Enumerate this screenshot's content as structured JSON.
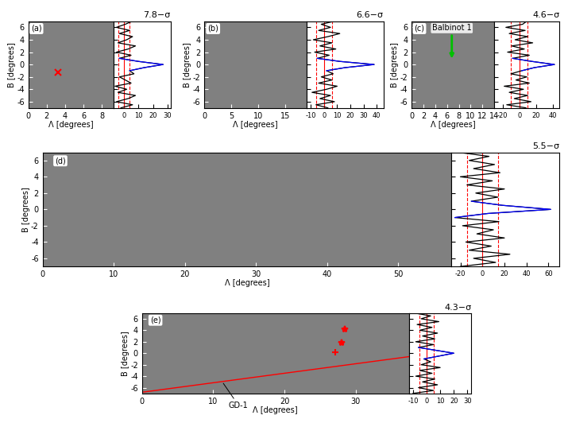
{
  "chart_data": [
    {
      "type": "map",
      "panel": "(a)",
      "color": "#808080",
      "xlabel": "Λ [degrees]",
      "ylabel": "B [degrees]",
      "xlim": [
        0,
        9.3
      ],
      "ylim": [
        -7,
        7
      ],
      "xticks": [
        0,
        2,
        4,
        6,
        8
      ],
      "yticks": [
        -6,
        -4,
        -2,
        0,
        2,
        4,
        6
      ],
      "markers": [
        {
          "x": 3.2,
          "y": -1.3,
          "marker": "x",
          "color": "red"
        }
      ],
      "profile": {
        "type": "line",
        "significance": "7.8−σ",
        "xlim": [
          -7,
          32
        ],
        "xticks": [
          0,
          10,
          20,
          30
        ],
        "tick_labels": "x",
        "y": [
          -7,
          -6.5,
          -6,
          -5.5,
          -5,
          -4.5,
          -4,
          -3.5,
          -3,
          -2.5,
          -2,
          -1.5,
          -1,
          -0.5,
          0,
          0.5,
          1,
          1.5,
          2,
          2.5,
          3,
          3.5,
          4,
          4.5,
          5,
          5.5,
          6,
          6.5,
          7
        ],
        "series": [
          {
            "color": "black",
            "values": [
              -2,
              6,
              -5,
              3,
              8,
              -4,
              2,
              -6,
              5,
              1,
              -3,
              7,
              4,
              14,
              27,
              10,
              -3,
              5,
              -5,
              3,
              8,
              -4,
              2,
              6,
              -3,
              4,
              -5,
              1,
              6
            ]
          },
          {
            "color": "blue",
            "y": [
              -1,
              -0.5,
              0,
              0.5,
              1
            ],
            "values": [
              4,
              14,
              27,
              10,
              -3
            ]
          }
        ],
        "reference_lines": {
          "solid": 0,
          "dashed": [
            -4,
            4
          ],
          "color": "red"
        }
      }
    },
    {
      "type": "map",
      "panel": "(b)",
      "color": "#808080",
      "xlabel": "Λ [degrees]",
      "ylabel": "B [degrees]",
      "xlim": [
        0,
        19
      ],
      "ylim": [
        -7,
        7
      ],
      "xticks": [
        0,
        5,
        10,
        15
      ],
      "yticks": [
        -6,
        -4,
        -2,
        0,
        2,
        4,
        6
      ],
      "profile": {
        "type": "line",
        "significance": "6.6−σ",
        "xlim": [
          -13,
          45
        ],
        "xticks": [
          -10,
          0,
          10,
          20,
          30,
          40
        ],
        "tick_labels": "x",
        "y": [
          -7,
          -6.5,
          -6,
          -5.5,
          -5,
          -4.5,
          -4,
          -3.5,
          -3,
          -2.5,
          -2,
          -1.5,
          -1,
          -0.5,
          0,
          0.5,
          1,
          1.5,
          2,
          2.5,
          3,
          3.5,
          4,
          4.5,
          5,
          5.5,
          6,
          6.5,
          7
        ],
        "series": [
          {
            "color": "black",
            "values": [
              3,
              -6,
              8,
              -3,
              5,
              -9,
              2,
              10,
              -4,
              6,
              -2,
              7,
              2,
              16,
              38,
              12,
              -5,
              4,
              -7,
              9,
              -3,
              6,
              -8,
              3,
              12,
              -4,
              5,
              -2,
              8
            ]
          },
          {
            "color": "blue",
            "y": [
              -1,
              -0.5,
              0,
              0.5,
              1
            ],
            "values": [
              2,
              16,
              38,
              12,
              -5
            ]
          }
        ],
        "reference_lines": {
          "solid": 0,
          "dashed": [
            -6,
            6
          ],
          "color": "red"
        }
      }
    },
    {
      "type": "map",
      "panel": "(c)",
      "color": "#808080",
      "xlabel": "Λ [degrees]",
      "ylabel": "B [degrees]",
      "xlim": [
        0,
        14
      ],
      "ylim": [
        -7,
        7
      ],
      "xticks": [
        0,
        2,
        4,
        6,
        8,
        10,
        12,
        14
      ],
      "yticks": [
        -6,
        -4,
        -2,
        0,
        2,
        4,
        6
      ],
      "annotations": [
        {
          "text": "Balbinot 1",
          "x": 6.8,
          "y": 0.6,
          "color": "#00c000"
        }
      ],
      "profile": {
        "type": "line",
        "significance": "4.6−σ",
        "xlim": [
          -30,
          48
        ],
        "xticks": [
          -20,
          0,
          20,
          40
        ],
        "tick_labels": "x",
        "y": [
          -7,
          -6.5,
          -6,
          -5.5,
          -5,
          -4.5,
          -4,
          -3.5,
          -3,
          -2.5,
          -2,
          -1.5,
          -1,
          -0.5,
          0,
          0.5,
          1,
          1.5,
          2,
          2.5,
          3,
          3.5,
          4,
          4.5,
          5,
          5.5,
          6,
          6.5,
          7
        ],
        "series": [
          {
            "color": "black",
            "values": [
              8,
              -15,
              14,
              -6,
              10,
              -12,
              5,
              -18,
              12,
              -4,
              9,
              -10,
              3,
              18,
              42,
              15,
              -8,
              12,
              -14,
              6,
              -9,
              16,
              -5,
              10,
              -12,
              7,
              -16,
              4,
              9
            ]
          },
          {
            "color": "blue",
            "y": [
              -1,
              -0.5,
              0,
              0.5,
              1
            ],
            "values": [
              3,
              18,
              42,
              15,
              -8
            ]
          }
        ],
        "reference_lines": {
          "solid": 0,
          "dashed": [
            -10,
            10
          ],
          "color": "red"
        }
      }
    },
    {
      "type": "map",
      "panel": "(d)",
      "color": "#808080",
      "xlabel": "Λ [degrees]",
      "ylabel": "B [degrees]",
      "xlim": [
        0,
        57.5
      ],
      "ylim": [
        -7,
        7
      ],
      "xticks": [
        0,
        10,
        20,
        30,
        40,
        50
      ],
      "yticks": [
        -6,
        -4,
        -2,
        0,
        2,
        4,
        6
      ],
      "profile": {
        "type": "line",
        "significance": "5.5−σ",
        "xlim": [
          -28,
          70
        ],
        "xticks": [
          -20,
          0,
          20,
          40,
          60
        ],
        "tick_labels": "x",
        "y": [
          -7,
          -6.5,
          -6,
          -5.5,
          -5,
          -4.5,
          -4,
          -3.5,
          -3,
          -2.5,
          -2,
          -1.5,
          -1,
          -0.5,
          0,
          0.5,
          1,
          1.5,
          2,
          2.5,
          3,
          3.5,
          4,
          4.5,
          5,
          5.5,
          6,
          6.5,
          7
        ],
        "series": [
          {
            "color": "black",
            "values": [
              -20,
              12,
              -8,
              25,
              -12,
              8,
              -15,
              20,
              -5,
              10,
              -18,
              15,
              -25,
              5,
              62,
              18,
              -10,
              14,
              -6,
              20,
              -14,
              9,
              -20,
              16,
              -8,
              11,
              -12,
              6,
              -22
            ]
          },
          {
            "color": "blue",
            "y": [
              -1,
              -0.5,
              0,
              0.5,
              1
            ],
            "values": [
              -25,
              5,
              62,
              18,
              -10
            ]
          }
        ],
        "reference_lines": {
          "solid": 0,
          "dashed": [
            -14,
            14
          ],
          "color": "red"
        }
      }
    },
    {
      "type": "map",
      "panel": "(e)",
      "color": "#808080",
      "xlabel": "Λ [degrees]",
      "ylabel": "B [degrees]",
      "xlim": [
        0,
        37.5
      ],
      "ylim": [
        -7,
        7
      ],
      "xticks": [
        0,
        10,
        20,
        30
      ],
      "yticks": [
        -6,
        -4,
        -2,
        0,
        2,
        4,
        6
      ],
      "markers": [
        {
          "x": 28.5,
          "y": 4.2,
          "marker": "*",
          "color": "red"
        },
        {
          "x": 28.0,
          "y": 1.9,
          "marker": "*",
          "color": "red"
        },
        {
          "x": 27.2,
          "y": 0.2,
          "marker": "+",
          "color": "red"
        }
      ],
      "track": {
        "name": "GD-1",
        "x": [
          0,
          37.5
        ],
        "y": [
          -6.8,
          -0.6
        ],
        "color": "red"
      },
      "profile": {
        "type": "line",
        "significance": "4.3−σ",
        "xlim": [
          -13,
          33
        ],
        "xticks": [
          -10,
          0,
          10,
          20,
          30
        ],
        "tick_labels": "x",
        "y": [
          -7,
          -6.5,
          -6,
          -5.5,
          -5,
          -4.5,
          -4,
          -3.5,
          -3,
          -2.5,
          -2,
          -1.5,
          -1,
          -0.5,
          0,
          0.5,
          1,
          1.5,
          2,
          2.5,
          3,
          3.5,
          4,
          4.5,
          5,
          5.5,
          6,
          6.5,
          7
        ],
        "series": [
          {
            "color": "black",
            "values": [
              -10,
              5,
              -6,
              8,
              -3,
              6,
              -8,
              4,
              -5,
              10,
              -4,
              3,
              -2,
              9,
              20,
              7,
              -6,
              5,
              -8,
              6,
              -3,
              8,
              -5,
              4,
              -7,
              9,
              -4,
              3,
              -9
            ]
          },
          {
            "color": "blue",
            "y": [
              -1,
              -0.5,
              0,
              0.5,
              1
            ],
            "values": [
              -2,
              9,
              20,
              7,
              -6
            ]
          }
        ],
        "reference_lines": {
          "solid": 0,
          "dashed": [
            -5,
            5
          ],
          "color": "red"
        }
      }
    }
  ]
}
